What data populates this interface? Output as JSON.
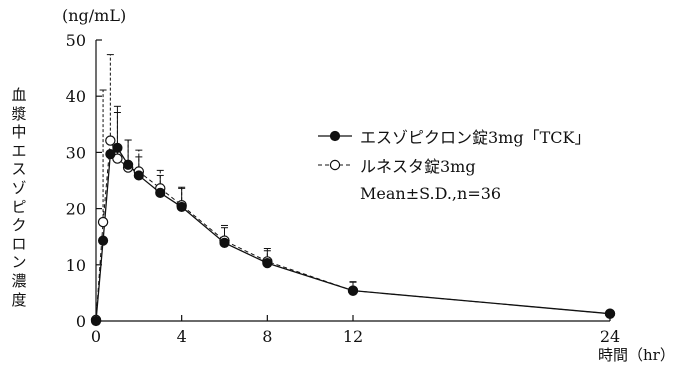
{
  "chart_data": {
    "type": "line",
    "y_unit": "(ng/mL)",
    "x_unit": "時間（hr）",
    "ylabel": "血漿中エスゾピクロン濃度",
    "ylim": [
      0,
      50
    ],
    "xlim": [
      0,
      24
    ],
    "y_ticks": [
      0,
      10,
      20,
      30,
      40,
      50
    ],
    "x_ticks": [
      0,
      4,
      8,
      12,
      24
    ],
    "legend_note": "Mean±S.D.,n=36",
    "series": [
      {
        "name": "エスゾピクロン錠3mg「TCK」",
        "marker": "filled-circle",
        "line": "solid",
        "x": [
          0,
          0.33,
          0.67,
          1,
          1.5,
          2,
          3,
          4,
          6,
          8,
          12,
          24
        ],
        "y": [
          0,
          14.3,
          29.7,
          30.8,
          27.8,
          25.9,
          22.8,
          20.3,
          13.9,
          10.3,
          5.4,
          1.3
        ],
        "sd": [
          0,
          0,
          0,
          7.4,
          4.4,
          3.3,
          3.1,
          3.3,
          2.7,
          2.2,
          1.5,
          0.5
        ]
      },
      {
        "name": "ルネスタ錠3mg",
        "marker": "open-circle",
        "line": "dashed",
        "x": [
          0,
          0.33,
          0.67,
          1,
          1.5,
          2,
          3,
          4,
          6,
          8,
          12,
          24
        ],
        "y": [
          0.2,
          17.6,
          32.1,
          28.9,
          27.3,
          26.6,
          23.6,
          20.6,
          14.3,
          10.6,
          5.4,
          1.3
        ],
        "sd": [
          0,
          23.5,
          15.3,
          8.2,
          4.9,
          3.8,
          3.2,
          3.2,
          2.7,
          2.3,
          1.6,
          0.5
        ]
      }
    ]
  }
}
